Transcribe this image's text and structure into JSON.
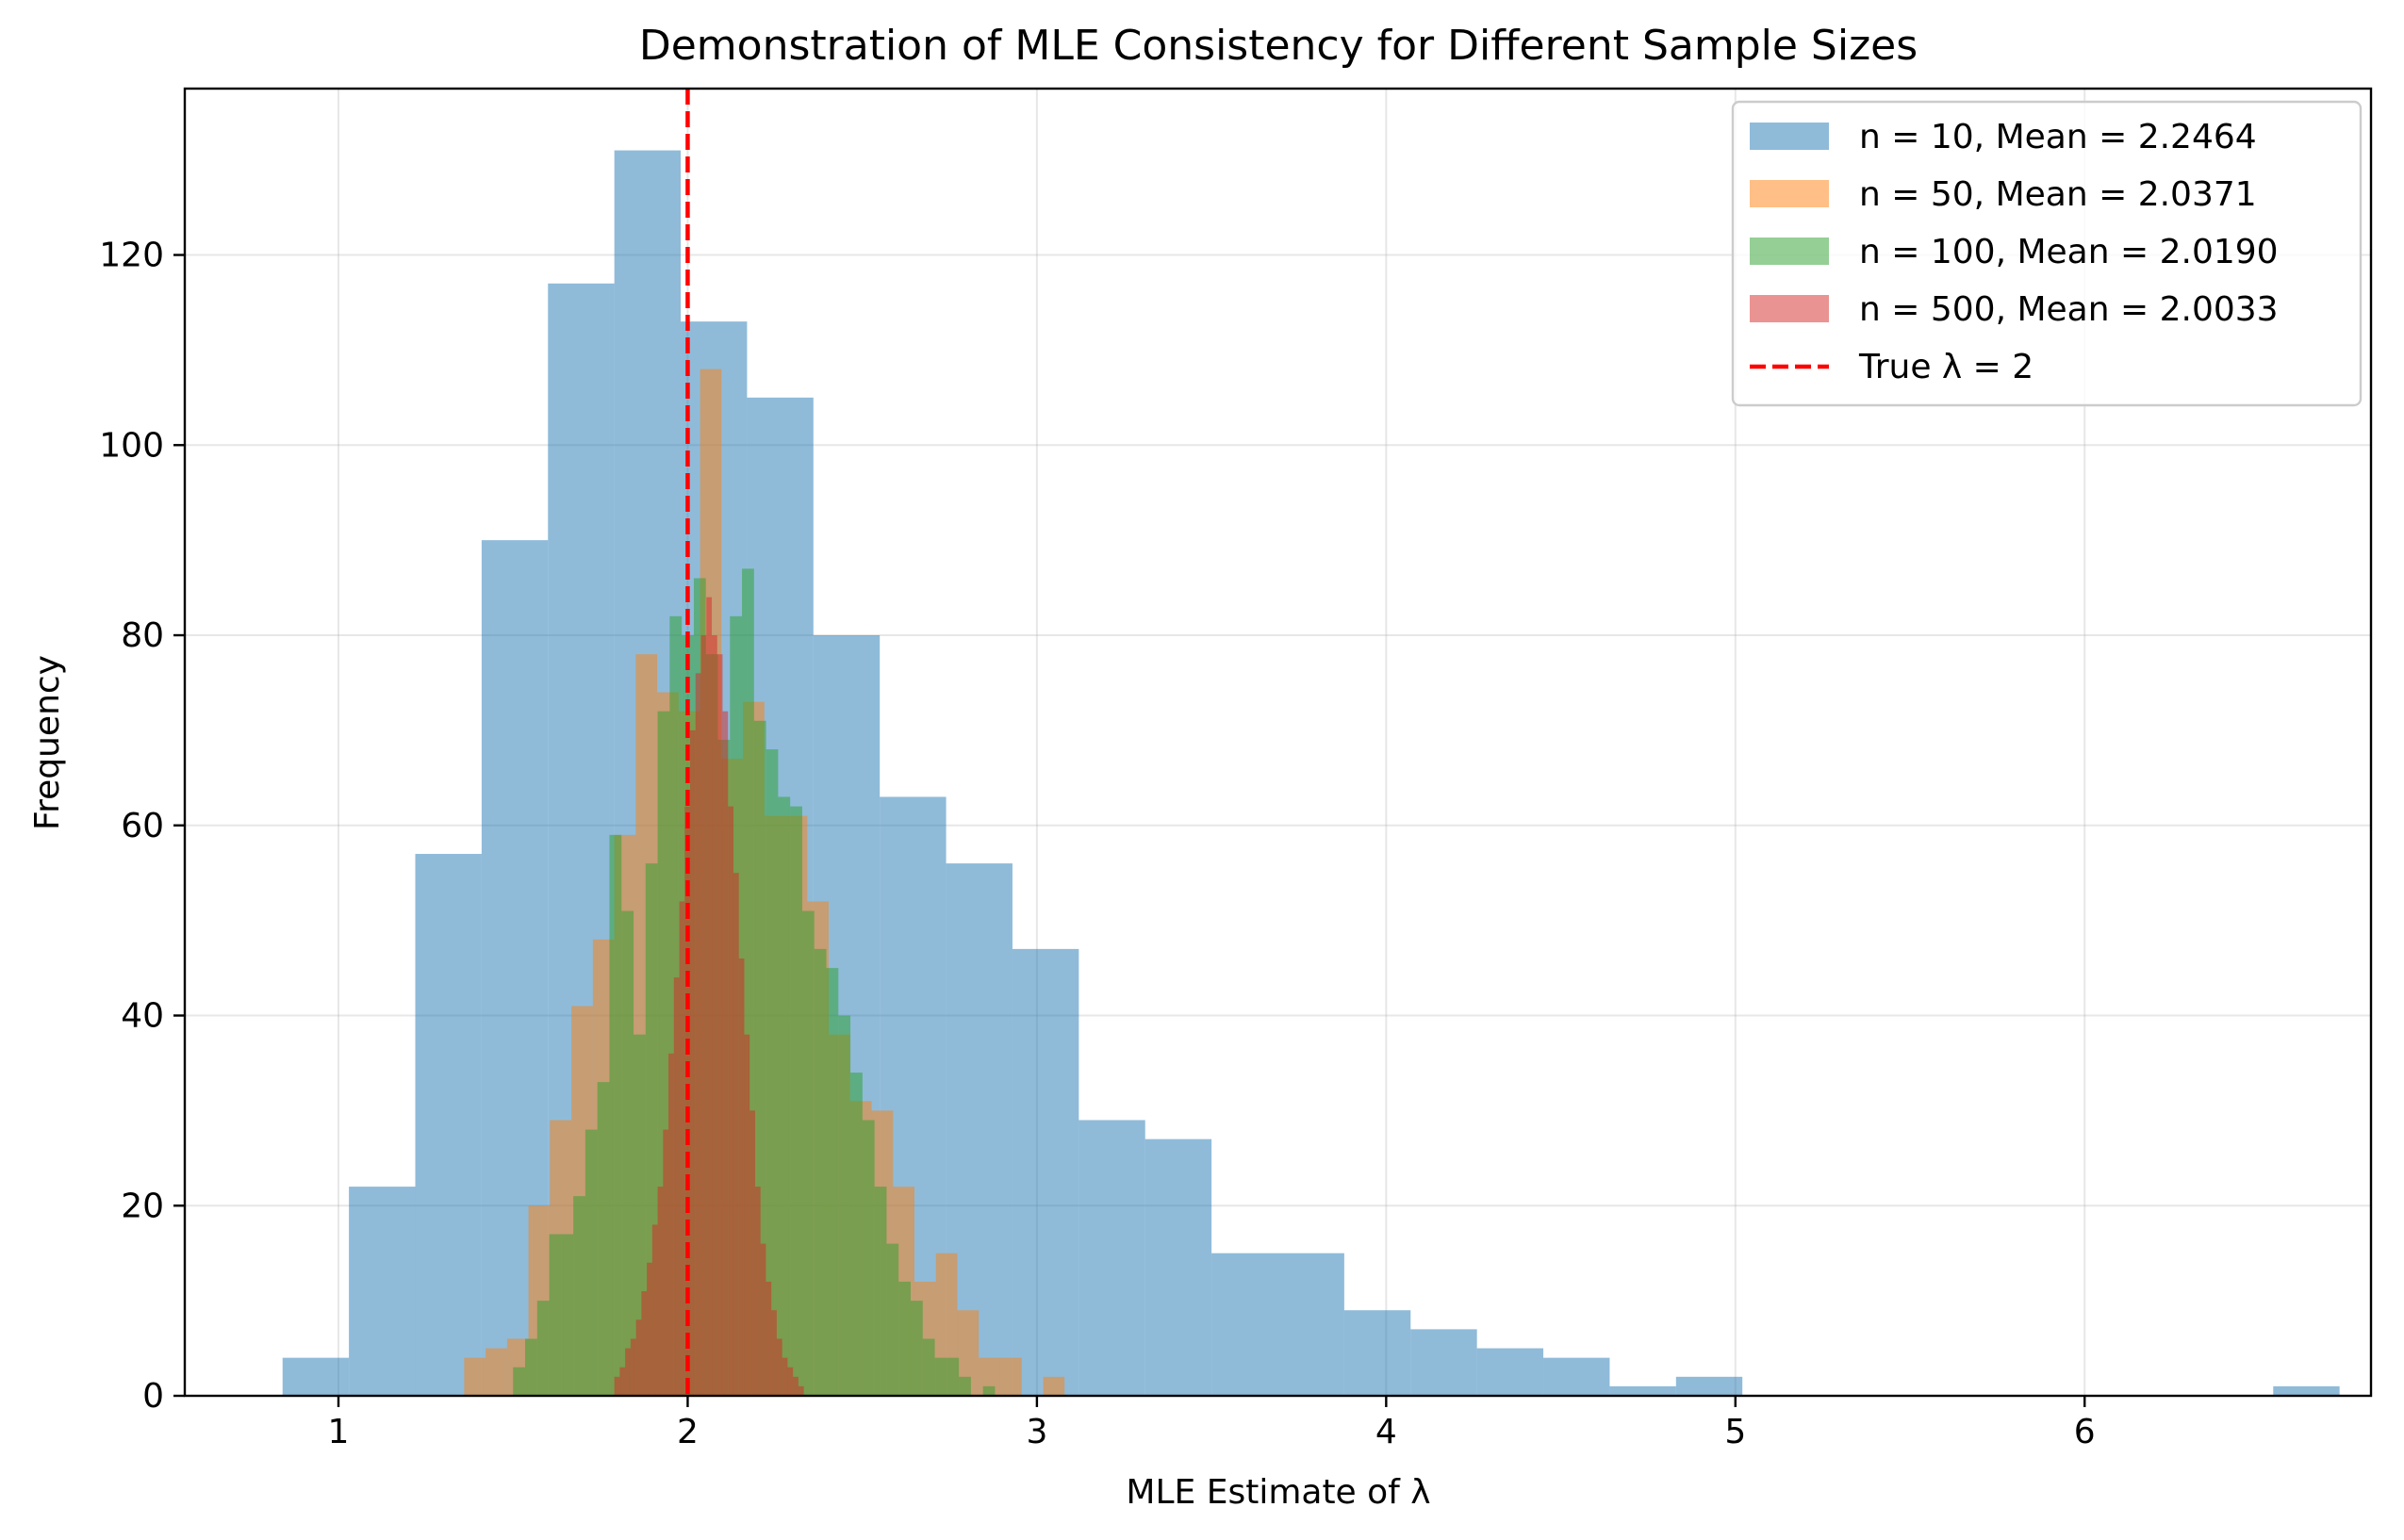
{
  "chart_data": {
    "type": "histogram",
    "title": "Demonstration of MLE Consistency for Different Sample Sizes",
    "xlabel": "MLE Estimate of λ",
    "ylabel": "Frequency",
    "xlim": [
      0.56,
      6.82
    ],
    "ylim": [
      0,
      137.5
    ],
    "xticks": [
      1,
      2,
      3,
      4,
      5,
      6
    ],
    "yticks": [
      0,
      20,
      40,
      60,
      80,
      100,
      120
    ],
    "grid": true,
    "legend_position": "top-right",
    "series": [
      {
        "name": "n = 10, Mean = 2.2464",
        "color": "#1f77b4",
        "alpha": 0.5,
        "bin_start": 0.84,
        "bin_width": 0.19,
        "counts": [
          4,
          22,
          57,
          90,
          117,
          131,
          113,
          105,
          80,
          63,
          56,
          47,
          29,
          27,
          15,
          15,
          9,
          7,
          5,
          4,
          1,
          2,
          0,
          0,
          0,
          0,
          0,
          0,
          0,
          0,
          1
        ]
      },
      {
        "name": "n = 50, Mean = 2.0371",
        "color": "#ff7f0e",
        "alpha": 0.5,
        "bin_start": 1.36,
        "bin_width": 0.0614,
        "counts": [
          4,
          5,
          6,
          20,
          29,
          41,
          48,
          59,
          78,
          74,
          72,
          108,
          67,
          73,
          61,
          61,
          52,
          38,
          31,
          30,
          22,
          12,
          15,
          9,
          4,
          4,
          0,
          2
        ]
      },
      {
        "name": "n = 100, Mean = 2.0190",
        "color": "#2ca02c",
        "alpha": 0.5,
        "bin_start": 1.5,
        "bin_width": 0.0345,
        "counts": [
          3,
          6,
          10,
          17,
          17,
          21,
          28,
          33,
          59,
          51,
          38,
          56,
          72,
          82,
          80,
          86,
          78,
          69,
          82,
          87,
          71,
          68,
          63,
          62,
          51,
          47,
          45,
          40,
          34,
          29,
          22,
          16,
          12,
          10,
          6,
          4,
          4,
          2,
          0,
          1
        ]
      },
      {
        "name": "n = 500, Mean = 2.0033",
        "color": "#d62728",
        "alpha": 0.5,
        "bin_start": 1.79,
        "bin_width": 0.0155,
        "counts": [
          2,
          3,
          5,
          6,
          8,
          11,
          14,
          18,
          22,
          28,
          36,
          44,
          52,
          62,
          70,
          76,
          80,
          84,
          80,
          78,
          72,
          62,
          55,
          46,
          38,
          30,
          22,
          16,
          12,
          9,
          6,
          4,
          3,
          2,
          1
        ]
      }
    ],
    "reference_line": {
      "label": "True λ = 2",
      "x": 2,
      "color": "#ff0000",
      "style": "dashed"
    }
  }
}
